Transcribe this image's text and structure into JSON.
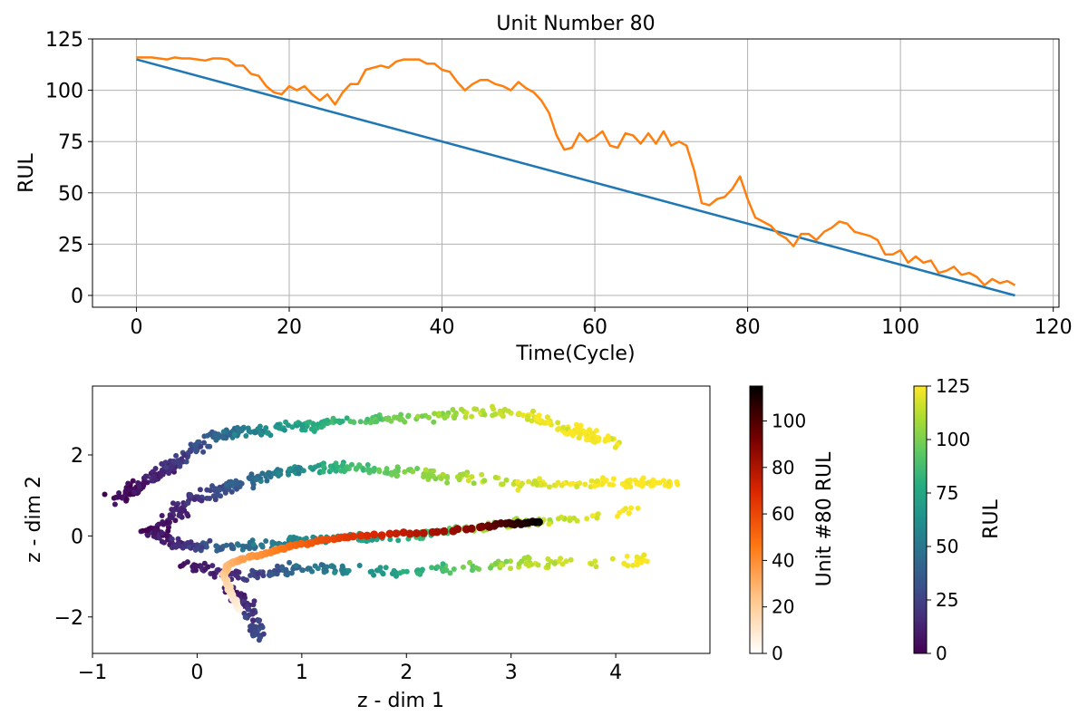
{
  "figure": {
    "top_title": "Unit Number 80"
  },
  "chart_data": [
    {
      "type": "line",
      "title": "Unit Number 80",
      "xlabel": "Time(Cycle)",
      "ylabel": "RUL",
      "xlim": [
        -5.75,
        120.75
      ],
      "ylim": [
        -5.75,
        125
      ],
      "xticks": [
        0,
        20,
        40,
        60,
        80,
        100,
        120
      ],
      "yticks": [
        0,
        25,
        50,
        75,
        100,
        125
      ],
      "grid": true,
      "legend": "none",
      "series": [
        {
          "color": "#1f77b4",
          "x": [
            0,
            115
          ],
          "y": [
            115,
            0
          ]
        },
        {
          "color": "#ff7f0e",
          "x": [
            0,
            1,
            2,
            3,
            4,
            5,
            6,
            7,
            8,
            9,
            10,
            11,
            12,
            13,
            14,
            15,
            16,
            17,
            18,
            19,
            20,
            21,
            22,
            23,
            24,
            25,
            26,
            27,
            28,
            29,
            30,
            31,
            32,
            33,
            34,
            35,
            36,
            37,
            38,
            39,
            40,
            41,
            42,
            43,
            44,
            45,
            46,
            47,
            48,
            49,
            50,
            51,
            52,
            53,
            54,
            55,
            56,
            57,
            58,
            59,
            60,
            61,
            62,
            63,
            64,
            65,
            66,
            67,
            68,
            69,
            70,
            71,
            72,
            73,
            74,
            75,
            76,
            77,
            78,
            79,
            80,
            81,
            82,
            83,
            84,
            85,
            86,
            87,
            88,
            89,
            90,
            91,
            92,
            93,
            94,
            95,
            96,
            97,
            98,
            99,
            100,
            101,
            102,
            103,
            104,
            105,
            106,
            107,
            108,
            109,
            110,
            111,
            112,
            113,
            114,
            115
          ],
          "y": [
            116,
            116,
            116,
            115.5,
            115,
            116,
            115.5,
            115.5,
            115,
            114.5,
            115.5,
            115.5,
            115,
            112,
            112,
            108,
            107,
            102,
            99,
            98,
            102,
            100,
            102,
            98,
            95,
            98,
            93,
            99,
            103,
            103,
            110,
            111,
            112,
            111,
            114,
            115,
            115,
            115,
            113,
            113,
            110,
            109,
            104,
            100,
            103,
            105,
            105,
            103,
            102,
            100,
            104,
            101,
            99,
            95,
            89,
            78,
            71,
            72,
            79,
            75,
            77,
            80,
            73,
            72,
            79,
            78,
            74,
            79,
            74,
            80,
            73,
            75,
            73,
            61,
            45,
            44,
            47,
            48,
            52,
            58,
            47,
            38,
            36,
            34,
            30,
            28,
            24,
            30,
            30,
            27,
            31,
            33,
            36,
            35,
            31,
            30,
            29,
            27,
            20,
            20,
            22,
            16,
            19,
            16,
            17,
            11,
            12,
            14,
            10,
            11,
            9,
            5,
            8,
            6,
            7,
            5
          ]
        }
      ]
    },
    {
      "type": "scatter",
      "xlabel": "z - dim 1",
      "ylabel": "z - dim 2",
      "xlim": [
        -1.0,
        4.9
      ],
      "ylim": [
        -2.9,
        3.7
      ],
      "xticks": [
        -1,
        0,
        1,
        2,
        3,
        4
      ],
      "yticks": [
        -2,
        0,
        2
      ],
      "grid": false,
      "background_cloud": {
        "name": "RUL",
        "colormap": "viridis",
        "color_range": [
          0,
          125
        ],
        "branches": [
          {
            "path": [
              [
                -0.8,
                0.9
              ],
              [
                -0.5,
                1.3
              ],
              [
                -0.2,
                1.8
              ],
              [
                0.2,
                2.5
              ],
              [
                0.6,
                2.6
              ],
              [
                1.2,
                2.8
              ],
              [
                2.0,
                2.9
              ],
              [
                3.0,
                3.1
              ],
              [
                3.6,
                2.6
              ],
              [
                4.0,
                2.3
              ]
            ],
            "rul": [
              2,
              8,
              20,
              40,
              60,
              80,
              100,
              118,
              125,
              125
            ],
            "spread": 0.15
          },
          {
            "path": [
              [
                -0.4,
                0.0
              ],
              [
                -0.1,
                0.8
              ],
              [
                0.3,
                1.2
              ],
              [
                0.8,
                1.6
              ],
              [
                1.3,
                1.7
              ],
              [
                2.0,
                1.6
              ],
              [
                3.0,
                1.3
              ],
              [
                4.0,
                1.3
              ],
              [
                4.6,
                1.3
              ]
            ],
            "rul": [
              3,
              15,
              35,
              55,
              80,
              100,
              118,
              125,
              125
            ],
            "spread": 0.14
          },
          {
            "path": [
              [
                -0.5,
                0.2
              ],
              [
                -0.2,
                -0.2
              ],
              [
                0.3,
                -0.3
              ],
              [
                1.0,
                -0.1
              ],
              [
                2.0,
                0.0
              ],
              [
                3.0,
                0.3
              ],
              [
                4.2,
                0.6
              ]
            ],
            "rul": [
              2,
              15,
              40,
              60,
              80,
              110,
              125
            ],
            "spread": 0.13
          },
          {
            "path": [
              [
                -0.1,
                -0.7
              ],
              [
                0.4,
                -1.0
              ],
              [
                1.0,
                -0.8
              ],
              [
                2.0,
                -0.9
              ],
              [
                3.0,
                -0.7
              ],
              [
                4.3,
                -0.6
              ]
            ],
            "rul": [
              5,
              20,
              45,
              75,
              110,
              125
            ],
            "spread": 0.14
          },
          {
            "path": [
              [
                0.3,
                -1.3
              ],
              [
                0.5,
                -1.8
              ],
              [
                0.6,
                -2.5
              ]
            ],
            "rul": [
              10,
              20,
              30
            ],
            "spread": 0.1
          }
        ]
      },
      "highlight_unit": {
        "name": "Unit #80 RUL",
        "colormap": "gist_heat_r",
        "color_range": [
          0,
          115
        ],
        "path": [
          [
            0.4,
            -1.8
          ],
          [
            0.32,
            -1.4
          ],
          [
            0.25,
            -0.95
          ],
          [
            0.3,
            -0.7
          ],
          [
            0.45,
            -0.55
          ],
          [
            0.7,
            -0.4
          ],
          [
            0.9,
            -0.25
          ],
          [
            1.2,
            -0.1
          ],
          [
            1.5,
            0.0
          ],
          [
            1.9,
            0.05
          ],
          [
            2.3,
            0.1
          ],
          [
            2.7,
            0.2
          ],
          [
            2.9,
            0.3
          ],
          [
            3.1,
            0.3
          ],
          [
            3.3,
            0.35
          ]
        ],
        "rul": [
          5,
          12,
          20,
          28,
          35,
          42,
          50,
          58,
          66,
          74,
          82,
          90,
          100,
          108,
          115
        ]
      }
    }
  ],
  "colorbars": [
    {
      "label": "Unit #80 RUL",
      "ticks": [
        0,
        20,
        40,
        60,
        80,
        100
      ],
      "range": [
        0,
        115
      ],
      "colormap": "gist_heat_r"
    },
    {
      "label": "RUL",
      "ticks": [
        0,
        25,
        50,
        75,
        100,
        125
      ],
      "range": [
        0,
        125
      ],
      "colormap": "viridis"
    }
  ]
}
